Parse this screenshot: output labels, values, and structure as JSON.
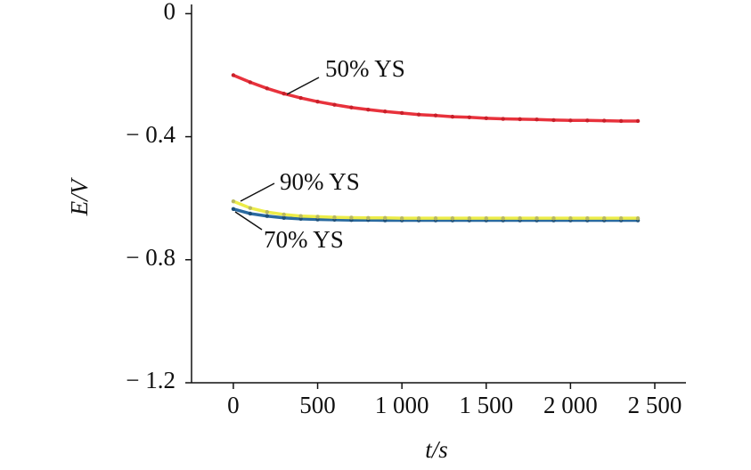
{
  "chart_data": {
    "type": "line",
    "xlabel": "t/s",
    "ylabel": "E/V",
    "x": [
      0,
      100,
      200,
      300,
      400,
      500,
      600,
      700,
      800,
      900,
      1000,
      1100,
      1200,
      1300,
      1400,
      1500,
      1600,
      1700,
      1800,
      1900,
      2000,
      2100,
      2200,
      2300,
      2400
    ],
    "series": [
      {
        "name": "50% YS",
        "color": "#e8323c",
        "marker_color": "#c8202a",
        "values": [
          -0.2,
          -0.223,
          -0.243,
          -0.26,
          -0.274,
          -0.286,
          -0.296,
          -0.305,
          -0.312,
          -0.318,
          -0.323,
          -0.328,
          -0.331,
          -0.335,
          -0.337,
          -0.34,
          -0.342,
          -0.343,
          -0.344,
          -0.346,
          -0.347,
          -0.347,
          -0.348,
          -0.349,
          -0.349
        ]
      },
      {
        "name": "70% YS",
        "color": "#2a6aa0",
        "marker_color": "#1c4f7a",
        "values": [
          -0.635,
          -0.65,
          -0.658,
          -0.664,
          -0.667,
          -0.669,
          -0.67,
          -0.671,
          -0.671,
          -0.672,
          -0.672,
          -0.672,
          -0.672,
          -0.672,
          -0.672,
          -0.672,
          -0.672,
          -0.672,
          -0.672,
          -0.672,
          -0.672,
          -0.672,
          -0.672,
          -0.672,
          -0.672
        ]
      },
      {
        "name": "90% YS",
        "color": "#ecec48",
        "marker_color": "#b8b860",
        "values": [
          -0.61,
          -0.632,
          -0.645,
          -0.653,
          -0.658,
          -0.66,
          -0.662,
          -0.663,
          -0.664,
          -0.664,
          -0.665,
          -0.665,
          -0.665,
          -0.665,
          -0.665,
          -0.665,
          -0.665,
          -0.665,
          -0.665,
          -0.665,
          -0.665,
          -0.665,
          -0.665,
          -0.665,
          -0.665
        ]
      }
    ],
    "xlim": [
      -248,
      2685
    ],
    "ylim": [
      -1.2,
      0.03
    ],
    "xticks": [
      0,
      500,
      {
        "value": 1000,
        "label": "1 000"
      },
      {
        "value": 1500,
        "label": "1 500"
      },
      {
        "value": 2000,
        "label": "2 000"
      },
      {
        "value": 2500,
        "label": "2 500"
      }
    ],
    "yticks": [
      0,
      {
        "value": -0.4,
        "label": "− 0.4"
      },
      {
        "value": -0.8,
        "label": "− 0.8"
      },
      {
        "value": -1.2,
        "label": "− 1.2"
      }
    ],
    "grid": false
  }
}
